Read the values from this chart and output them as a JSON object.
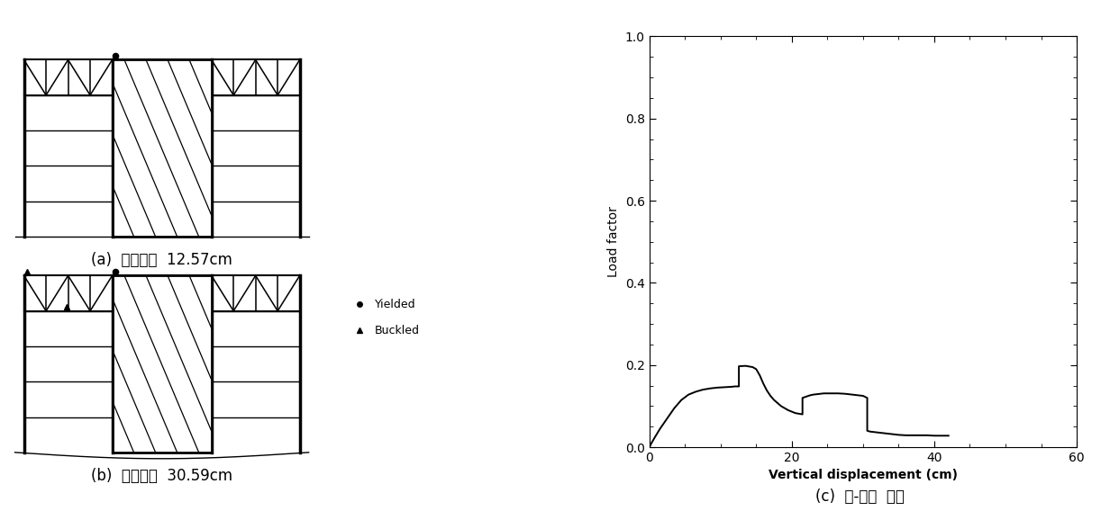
{
  "graph_x": [
    0,
    0.3,
    0.8,
    1.5,
    2.5,
    3.5,
    4.5,
    5.5,
    6.5,
    7.5,
    8.5,
    9.5,
    10.5,
    11.5,
    12.0,
    12.57,
    12.57,
    13.5,
    14.5,
    15.0,
    15.0,
    15.5,
    16.0,
    16.5,
    17.0,
    17.5,
    18.5,
    19.5,
    20.5,
    21.5,
    21.5,
    22.0,
    22.5,
    23.0,
    23.5,
    24.0,
    24.5,
    25.0,
    25.5,
    25.5,
    25.5,
    26.5,
    27.5,
    28.5,
    29.0,
    29.5,
    30.0,
    30.59,
    30.59,
    31.0,
    32.0,
    33.0,
    34.0,
    35.0,
    36.0,
    37.0,
    38.0,
    39.0,
    40.0,
    41.0,
    42.0
  ],
  "graph_y": [
    0,
    0.01,
    0.025,
    0.045,
    0.07,
    0.095,
    0.115,
    0.128,
    0.135,
    0.14,
    0.143,
    0.145,
    0.146,
    0.147,
    0.148,
    0.148,
    0.197,
    0.198,
    0.195,
    0.19,
    0.19,
    0.175,
    0.155,
    0.138,
    0.125,
    0.115,
    0.1,
    0.09,
    0.083,
    0.08,
    0.12,
    0.123,
    0.126,
    0.128,
    0.129,
    0.13,
    0.131,
    0.131,
    0.131,
    0.131,
    0.131,
    0.131,
    0.13,
    0.128,
    0.127,
    0.126,
    0.125,
    0.12,
    0.04,
    0.038,
    0.036,
    0.034,
    0.032,
    0.03,
    0.029,
    0.029,
    0.029,
    0.029,
    0.028,
    0.028,
    0.028
  ],
  "xlabel": "Vertical displacement (cm)",
  "ylabel": "Load factor",
  "xlim": [
    0,
    60
  ],
  "ylim": [
    0,
    1.0
  ],
  "xticks": [
    0,
    20,
    40,
    60
  ],
  "yticks": [
    0.0,
    0.2,
    0.4,
    0.6,
    0.8,
    1.0
  ],
  "caption_c": "(c)  힘-변위  관계",
  "caption_a": "(a)  수직변위  12.57cm",
  "caption_b": "(b)  수직변위  30.59cm",
  "legend_yielded": "Yielded",
  "legend_buckled": "Buckled",
  "line_color": "#000000",
  "background_color": "#ffffff"
}
